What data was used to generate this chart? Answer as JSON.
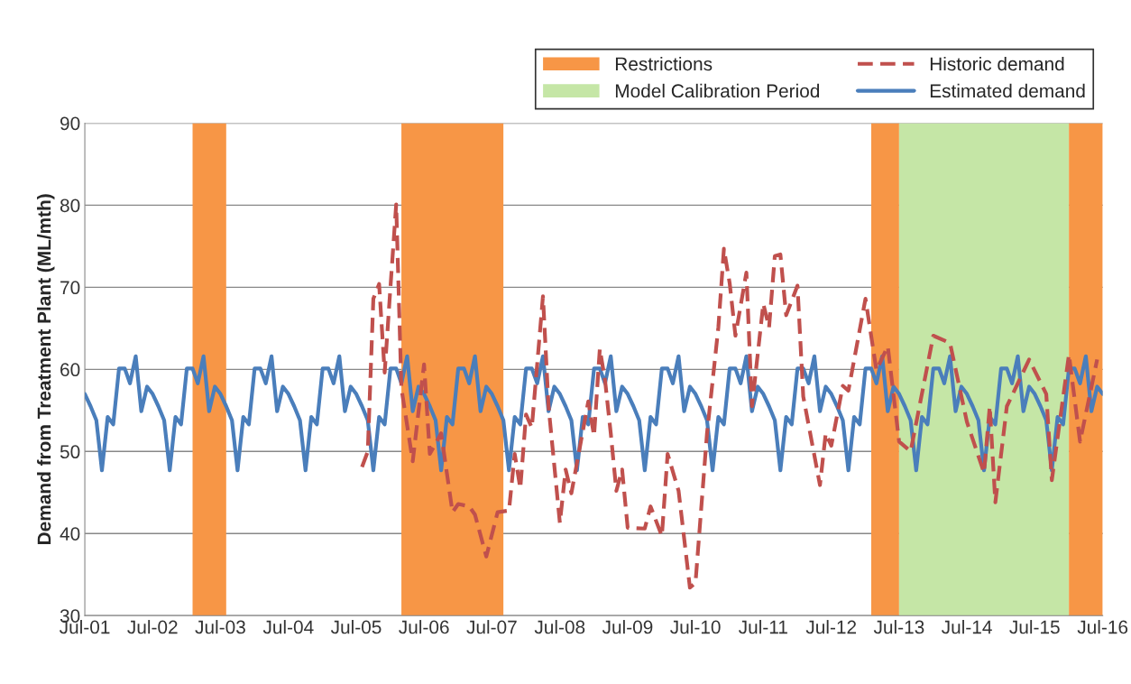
{
  "chart_data": {
    "type": "line",
    "ylabel": "Demand from Treatment Plant (ML/mth)",
    "xlim": [
      "2001-07",
      "2016-07"
    ],
    "xticks": [
      {
        "value": "2001-07",
        "label": "Jul-01"
      },
      {
        "value": "2002-07",
        "label": "Jul-02"
      },
      {
        "value": "2003-07",
        "label": "Jul-03"
      },
      {
        "value": "2004-07",
        "label": "Jul-04"
      },
      {
        "value": "2005-07",
        "label": "Jul-05"
      },
      {
        "value": "2006-07",
        "label": "Jul-06"
      },
      {
        "value": "2007-07",
        "label": "Jul-07"
      },
      {
        "value": "2008-07",
        "label": "Jul-08"
      },
      {
        "value": "2009-07",
        "label": "Jul-09"
      },
      {
        "value": "2010-07",
        "label": "Jul-10"
      },
      {
        "value": "2011-07",
        "label": "Jul-11"
      },
      {
        "value": "2012-07",
        "label": "Jul-12"
      },
      {
        "value": "2013-07",
        "label": "Jul-13"
      },
      {
        "value": "2014-07",
        "label": "Jul-14"
      },
      {
        "value": "2015-07",
        "label": "Jul-15"
      },
      {
        "value": "2016-07",
        "label": "Jul-16"
      }
    ],
    "ylim": [
      30,
      90
    ],
    "yticks": [
      30,
      40,
      50,
      60,
      70,
      80,
      90
    ],
    "grid": "y",
    "legend": "top right",
    "bands": [
      {
        "axis": "x",
        "from": "2003-02",
        "to": "2003-08",
        "label": "Restrictions",
        "color": "#f79646"
      },
      {
        "axis": "x",
        "from": "2006-03",
        "to": "2007-09",
        "color": "#f79646"
      },
      {
        "axis": "x",
        "from": "2013-02",
        "to": "2013-07",
        "color": "#f79646"
      },
      {
        "axis": "x",
        "from": "2013-07",
        "to": "2016-01",
        "label": "Model Calibration Period",
        "color": "#c5e6a6"
      },
      {
        "axis": "x",
        "from": "2016-01",
        "to": "2016-07",
        "color": "#f79646"
      }
    ],
    "series": [
      {
        "name": "Historic demand",
        "color": "#c0504d",
        "line_style": "dashed",
        "x": [
          "2005-08",
          "2005-09",
          "2005-10",
          "2005-11",
          "2005-12",
          "2006-01",
          "2006-02",
          "2006-03",
          "2006-05",
          "2006-07",
          "2006-08",
          "2006-10",
          "2006-12",
          "2007-01",
          "2007-03",
          "2007-04",
          "2007-06",
          "2007-08",
          "2007-10",
          "2007-11",
          "2007-12",
          "2008-01",
          "2008-02",
          "2008-04",
          "2008-05",
          "2008-07",
          "2008-08",
          "2008-09",
          "2008-12",
          "2009-01",
          "2009-02",
          "2009-03",
          "2009-04",
          "2009-05",
          "2009-06",
          "2009-07",
          "2009-10",
          "2009-11",
          "2010-01",
          "2010-02",
          "2010-04",
          "2010-06",
          "2010-07",
          "2010-09",
          "2010-11",
          "2010-12",
          "2011-01",
          "2011-02",
          "2011-04",
          "2011-05",
          "2011-07",
          "2011-08",
          "2011-09",
          "2011-10",
          "2011-11",
          "2012-01",
          "2012-02",
          "2012-05",
          "2012-06",
          "2012-07",
          "2012-09",
          "2012-10",
          "2013-01",
          "2013-03",
          "2013-05",
          "2013-07",
          "2013-09",
          "2014-01",
          "2014-04",
          "2014-07",
          "2014-10",
          "2014-11",
          "2014-12",
          "2015-02",
          "2015-06",
          "2015-09",
          "2015-10",
          "2016-01",
          "2016-03",
          "2016-06"
        ],
        "values": [
          48.1,
          50.0,
          68.6,
          70.4,
          59.6,
          70.0,
          80.1,
          57.7,
          48.8,
          60.6,
          49.7,
          52.2,
          42.6,
          43.6,
          43.3,
          42.3,
          37.2,
          42.6,
          42.8,
          49.7,
          45.5,
          54.5,
          52.9,
          68.9,
          55.5,
          41.3,
          47.8,
          44.9,
          56.1,
          51.9,
          62.5,
          58.7,
          52.2,
          45.2,
          47.8,
          40.7,
          40.6,
          43.3,
          39.7,
          49.7,
          45.2,
          33.4,
          34.0,
          52.2,
          65.1,
          74.7,
          70.5,
          64.1,
          71.8,
          55.5,
          68.0,
          65.1,
          73.8,
          74.0,
          66.6,
          70.2,
          56.7,
          45.9,
          52.2,
          50.7,
          58.0,
          57.4,
          68.6,
          59.9,
          62.8,
          51.2,
          50.0,
          64.1,
          63.2,
          53.6,
          47.4,
          55.5,
          43.8,
          55.5,
          61.2,
          57.0,
          46.5,
          61.8,
          51.2,
          61.2
        ]
      },
      {
        "name": "Estimated demand",
        "color": "#4a7ebb",
        "line_style": "solid",
        "x": [
          "2001-07",
          "2001-08",
          "2001-09",
          "2001-10",
          "2001-11",
          "2001-12",
          "2002-01",
          "2002-02",
          "2002-03",
          "2002-04",
          "2002-05",
          "2002-06",
          "2002-07",
          "2002-08",
          "2002-09",
          "2002-10",
          "2002-11",
          "2002-12",
          "2003-01",
          "2003-02",
          "2003-03",
          "2003-04",
          "2003-05",
          "2003-06",
          "2003-07",
          "2003-08",
          "2003-09",
          "2003-10",
          "2003-11",
          "2003-12",
          "2004-01",
          "2004-02",
          "2004-03",
          "2004-04",
          "2004-05",
          "2004-06",
          "2004-07",
          "2004-08",
          "2004-09",
          "2004-10",
          "2004-11",
          "2004-12",
          "2005-01",
          "2005-02",
          "2005-03",
          "2005-04",
          "2005-05",
          "2005-06",
          "2005-07",
          "2005-08",
          "2005-09",
          "2005-10",
          "2005-11",
          "2005-12",
          "2006-01",
          "2006-02",
          "2006-03",
          "2006-04",
          "2006-05",
          "2006-06",
          "2006-07",
          "2006-08",
          "2006-09",
          "2006-10",
          "2006-11",
          "2006-12",
          "2007-01",
          "2007-02",
          "2007-03",
          "2007-04",
          "2007-05",
          "2007-06",
          "2007-07",
          "2007-08",
          "2007-09",
          "2007-10",
          "2007-11",
          "2007-12",
          "2008-01",
          "2008-02",
          "2008-03",
          "2008-04",
          "2008-05",
          "2008-06",
          "2008-07",
          "2008-08",
          "2008-09",
          "2008-10",
          "2008-11",
          "2008-12",
          "2009-01",
          "2009-02",
          "2009-03",
          "2009-04",
          "2009-05",
          "2009-06",
          "2009-07",
          "2009-08",
          "2009-09",
          "2009-10",
          "2009-11",
          "2009-12",
          "2010-01",
          "2010-02",
          "2010-03",
          "2010-04",
          "2010-05",
          "2010-06",
          "2010-07",
          "2010-08",
          "2010-09",
          "2010-10",
          "2010-11",
          "2010-12",
          "2011-01",
          "2011-02",
          "2011-03",
          "2011-04",
          "2011-05",
          "2011-06",
          "2011-07",
          "2011-08",
          "2011-09",
          "2011-10",
          "2011-11",
          "2011-12",
          "2012-01",
          "2012-02",
          "2012-03",
          "2012-04",
          "2012-05",
          "2012-06",
          "2012-07",
          "2012-08",
          "2012-09",
          "2012-10",
          "2012-11",
          "2012-12",
          "2013-01",
          "2013-02",
          "2013-03",
          "2013-04",
          "2013-05",
          "2013-06",
          "2013-07",
          "2013-08",
          "2013-09",
          "2013-10",
          "2013-11",
          "2013-12",
          "2014-01",
          "2014-02",
          "2014-03",
          "2014-04",
          "2014-05",
          "2014-06",
          "2014-07",
          "2014-08",
          "2014-09",
          "2014-10",
          "2014-11",
          "2014-12",
          "2015-01",
          "2015-02",
          "2015-03",
          "2015-04",
          "2015-05",
          "2015-06",
          "2015-07",
          "2015-08",
          "2015-09",
          "2015-10",
          "2015-11",
          "2015-12",
          "2016-01",
          "2016-02",
          "2016-03",
          "2016-04",
          "2016-05",
          "2016-06",
          "2016-07"
        ],
        "values": [
          57.0,
          55.5,
          53.8,
          47.7,
          54.2,
          53.3,
          60.1,
          60.1,
          58.3,
          61.6,
          54.9,
          57.9,
          57.0,
          55.5,
          53.8,
          47.7,
          54.2,
          53.3,
          60.1,
          60.1,
          58.3,
          61.6,
          54.9,
          57.9,
          57.0,
          55.5,
          53.8,
          47.7,
          54.2,
          53.3,
          60.1,
          60.1,
          58.3,
          61.6,
          54.9,
          57.9,
          57.0,
          55.5,
          53.8,
          47.7,
          54.2,
          53.3,
          60.1,
          60.1,
          58.3,
          61.6,
          54.9,
          57.9,
          57.0,
          55.5,
          53.8,
          47.7,
          54.2,
          53.3,
          60.1,
          60.1,
          58.3,
          61.6,
          54.9,
          57.9,
          57.0,
          55.5,
          53.8,
          47.7,
          54.2,
          53.3,
          60.1,
          60.1,
          58.3,
          61.6,
          54.9,
          57.9,
          57.0,
          55.5,
          53.8,
          47.7,
          54.2,
          53.3,
          60.1,
          60.1,
          58.3,
          61.6,
          54.9,
          57.9,
          57.0,
          55.5,
          53.8,
          47.7,
          54.2,
          53.3,
          60.1,
          60.1,
          58.3,
          61.6,
          54.9,
          57.9,
          57.0,
          55.5,
          53.8,
          47.7,
          54.2,
          53.3,
          60.1,
          60.1,
          58.3,
          61.6,
          54.9,
          57.9,
          57.0,
          55.5,
          53.8,
          47.7,
          54.2,
          53.3,
          60.1,
          60.1,
          58.3,
          61.6,
          54.9,
          57.9,
          57.0,
          55.5,
          53.8,
          47.7,
          54.2,
          53.3,
          60.1,
          60.1,
          58.3,
          61.6,
          54.9,
          57.9,
          57.0,
          55.5,
          53.8,
          47.7,
          54.2,
          53.3,
          60.1,
          60.1,
          58.3,
          61.6,
          54.9,
          57.9,
          57.0,
          55.5,
          53.8,
          47.7,
          54.2,
          53.3,
          60.1,
          60.1,
          58.3,
          61.6,
          54.9,
          57.9,
          57.0,
          55.5,
          53.8,
          47.7,
          54.2,
          53.3,
          60.1,
          60.1,
          58.3,
          61.6,
          54.9,
          57.9,
          57.0,
          55.5,
          53.8,
          47.7,
          54.2,
          53.3,
          60.1,
          60.1,
          58.3,
          61.6,
          54.9,
          57.9,
          57.0
        ]
      }
    ]
  }
}
